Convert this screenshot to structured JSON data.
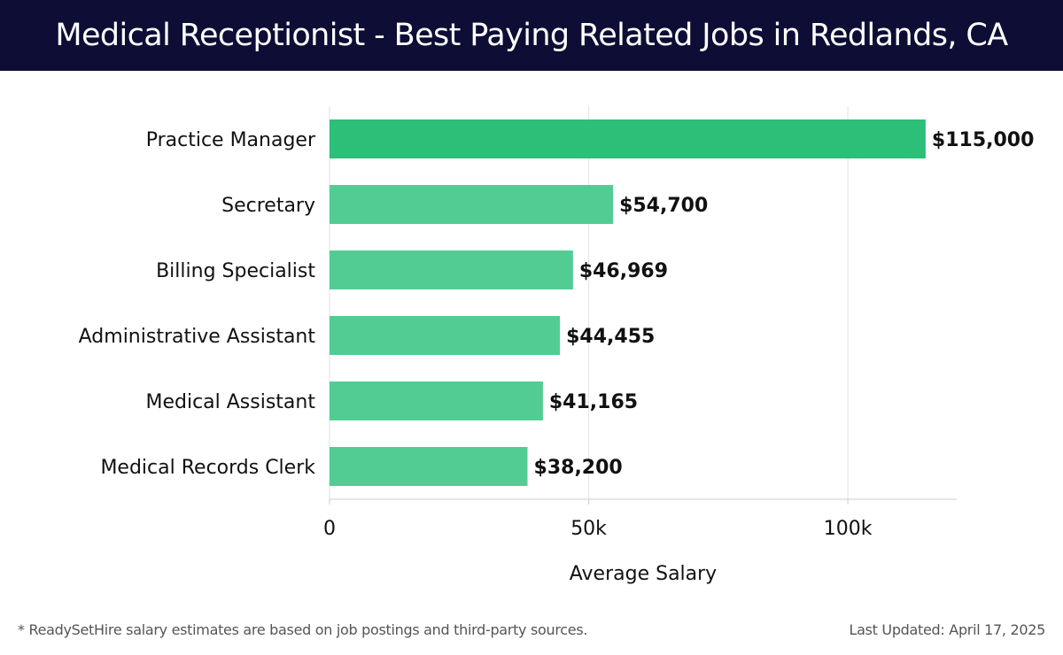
{
  "header": {
    "title": "Medical Receptionist - Best Paying Related Jobs in Redlands, CA"
  },
  "chart_data": {
    "type": "bar",
    "orientation": "horizontal",
    "categories": [
      "Practice Manager",
      "Secretary",
      "Billing Specialist",
      "Administrative Assistant",
      "Medical Assistant",
      "Medical Records Clerk"
    ],
    "values": [
      115000,
      54700,
      46969,
      44455,
      41165,
      38200
    ],
    "value_labels": [
      "$115,000",
      "$54,700",
      "$46,969",
      "$44,455",
      "$41,165",
      "$38,200"
    ],
    "highlight_color": "#2bbf78",
    "bar_color": "#52cc93",
    "xlabel": "Average Salary",
    "xlim": [
      0,
      121000
    ],
    "xticks": [
      0,
      50000,
      100000
    ],
    "xtick_labels": [
      "0",
      "50k",
      "100k"
    ],
    "grid": true
  },
  "footer": {
    "note": "* ReadySetHire salary estimates are based on job postings and third-party sources.",
    "updated": "Last Updated: April 17, 2025"
  }
}
